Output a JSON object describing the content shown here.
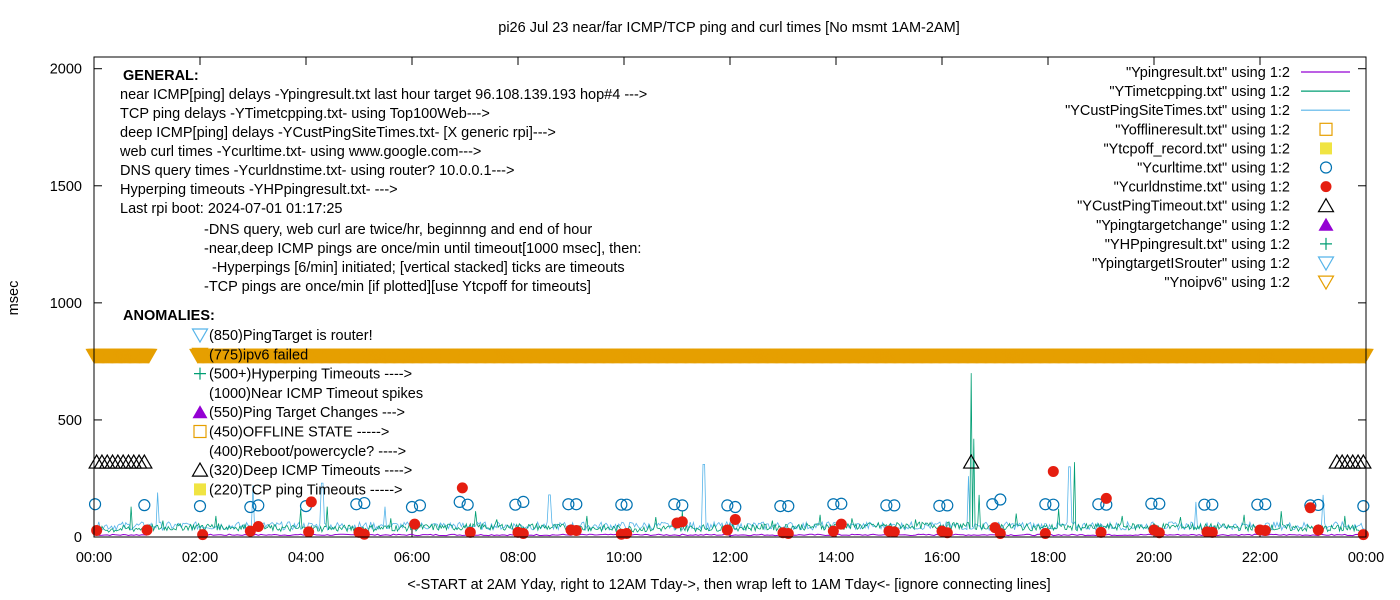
{
  "chart_data": {
    "type": "scatter",
    "title": "pi26 Jul 23  near/far ICMP/TCP ping and curl times [No msmt 1AM-2AM]",
    "xlabel": "<-START at 2AM Yday, right to 12AM Tday->, then wrap left to 1AM Tday<- [ignore connecting lines]",
    "ylabel": "msec",
    "xlim": [
      0,
      24
    ],
    "ylim": [
      0,
      2050
    ],
    "x_ticks": [
      {
        "v": 0,
        "label": "00:00"
      },
      {
        "v": 2,
        "label": "02:00"
      },
      {
        "v": 4,
        "label": "04:00"
      },
      {
        "v": 6,
        "label": "06:00"
      },
      {
        "v": 8,
        "label": "08:00"
      },
      {
        "v": 10,
        "label": "10:00"
      },
      {
        "v": 12,
        "label": "12:00"
      },
      {
        "v": 14,
        "label": "14:00"
      },
      {
        "v": 16,
        "label": "16:00"
      },
      {
        "v": 18,
        "label": "18:00"
      },
      {
        "v": 20,
        "label": "20:00"
      },
      {
        "v": 22,
        "label": "22:00"
      },
      {
        "v": 24,
        "label": "00:00"
      }
    ],
    "y_ticks": [
      {
        "v": 0,
        "label": "0"
      },
      {
        "v": 500,
        "label": "500"
      },
      {
        "v": 1000,
        "label": "1000"
      },
      {
        "v": 1500,
        "label": "1500"
      },
      {
        "v": 2000,
        "label": "2000"
      }
    ],
    "grid": false,
    "legend_position": "top-right",
    "legend": [
      {
        "label": "\"Ypingresult.txt\" using 1:2",
        "kind": "line",
        "color": "#9400d3"
      },
      {
        "label": "\"YTimetcpping.txt\" using 1:2",
        "kind": "line",
        "color": "#009e73"
      },
      {
        "label": "\"YCustPingSiteTimes.txt\" using 1:2",
        "kind": "line",
        "color": "#56b4e9"
      },
      {
        "label": "\"Yofflineresult.txt\" using 1:2",
        "kind": "open-square",
        "color": "#e69f00"
      },
      {
        "label": "\"Ytcpoff_record.txt\" using 1:2",
        "kind": "filled-square",
        "color": "#f0e442"
      },
      {
        "label": "\"Ycurltime.txt\" using 1:2",
        "kind": "open-circle",
        "color": "#0072b2"
      },
      {
        "label": "\"Ycurldnstime.txt\" using 1:2",
        "kind": "filled-circle",
        "color": "#e51e10"
      },
      {
        "label": "\"YCustPingTimeout.txt\" using 1:2",
        "kind": "open-triangle",
        "color": "#000000"
      },
      {
        "label": "\"Ypingtargetchange\" using 1:2",
        "kind": "filled-triangle",
        "color": "#9400d3"
      },
      {
        "label": "\"YHPpingresult.txt\" using 1:2",
        "kind": "plus",
        "color": "#009e73"
      },
      {
        "label": "\"YpingtargetISrouter\" using 1:2",
        "kind": "open-down-triangle",
        "color": "#56b4e9"
      },
      {
        "label": "\"Ynoipv6\" using 1:2",
        "kind": "open-down-triangle",
        "color": "#e69f00"
      }
    ],
    "annotations": {
      "general_header": "GENERAL:",
      "general": [
        "near ICMP[ping] delays -Ypingresult.txt last hour target 96.108.139.193 hop#4 --->",
        "TCP ping delays -YTimetcpping.txt- using Top100Web--->",
        "deep ICMP[ping] delays -YCustPingSiteTimes.txt- [X generic rpi]--->",
        "web curl times -Ycurltime.txt- using www.google.com--->",
        "DNS query times -Ycurldnstime.txt- using router? 10.0.0.1--->",
        "Hyperping timeouts -YHPpingresult.txt- --->",
        "Last rpi boot: 2024-07-01 01:17:25"
      ],
      "notes": [
        "-DNS query, web curl are twice/hr, beginnng and end of hour",
        "-near,deep ICMP pings are once/min until timeout[1000 msec], then:",
        "  -Hyperpings [6/min] initiated; [vertical stacked] ticks are timeouts",
        "-TCP pings are once/min [if plotted][use Ytcpoff for timeouts]"
      ],
      "anomalies_header": "ANOMALIES:",
      "anomalies": [
        {
          "text": "(850)PingTarget is router!",
          "marker": "open-down-triangle",
          "color": "#56b4e9"
        },
        {
          "text": "(775)ipv6 failed",
          "marker": "open-down-triangle",
          "color": "#e69f00"
        },
        {
          "text": "(500+)Hyperping Timeouts ---->",
          "marker": "plus",
          "color": "#009e73"
        },
        {
          "text": "(1000)Near ICMP Timeout spikes",
          "marker": "none",
          "color": "#000000"
        },
        {
          "text": "(550)Ping Target Changes --->",
          "marker": "filled-triangle",
          "color": "#9400d3"
        },
        {
          "text": "(450)OFFLINE STATE ----->",
          "marker": "open-square",
          "color": "#e69f00"
        },
        {
          "text": "(400)Reboot/powercycle? ---->",
          "marker": "none",
          "color": "#000000"
        },
        {
          "text": "(320)Deep ICMP Timeouts ---->",
          "marker": "open-triangle",
          "color": "#000000"
        },
        {
          "text": "(220)TCP ping Timeouts ----->",
          "marker": "filled-square",
          "color": "#f0e442"
        }
      ]
    },
    "series": [
      {
        "name": "\"Ycurltime.txt\" using 1:2",
        "marker": "open-circle",
        "color": "#0072b2",
        "points": [
          [
            0.02,
            140
          ],
          [
            0.95,
            136
          ],
          [
            2.0,
            132
          ],
          [
            2.95,
            128
          ],
          [
            3.1,
            135
          ],
          [
            4.0,
            132
          ],
          [
            4.95,
            140
          ],
          [
            5.1,
            145
          ],
          [
            6.0,
            128
          ],
          [
            6.15,
            135
          ],
          [
            6.9,
            150
          ],
          [
            7.05,
            138
          ],
          [
            7.95,
            138
          ],
          [
            8.1,
            150
          ],
          [
            8.95,
            140
          ],
          [
            9.1,
            140
          ],
          [
            9.95,
            138
          ],
          [
            10.05,
            138
          ],
          [
            10.95,
            140
          ],
          [
            11.1,
            135
          ],
          [
            11.95,
            135
          ],
          [
            12.1,
            128
          ],
          [
            12.95,
            132
          ],
          [
            13.1,
            132
          ],
          [
            13.95,
            140
          ],
          [
            14.1,
            142
          ],
          [
            14.95,
            135
          ],
          [
            15.1,
            135
          ],
          [
            15.95,
            133
          ],
          [
            16.1,
            135
          ],
          [
            16.95,
            140
          ],
          [
            17.1,
            160
          ],
          [
            17.95,
            140
          ],
          [
            18.1,
            138
          ],
          [
            18.95,
            140
          ],
          [
            19.1,
            138
          ],
          [
            19.95,
            142
          ],
          [
            20.1,
            142
          ],
          [
            20.95,
            138
          ],
          [
            21.1,
            138
          ],
          [
            21.95,
            138
          ],
          [
            22.1,
            140
          ],
          [
            22.95,
            135
          ],
          [
            23.1,
            137
          ],
          [
            23.95,
            132
          ]
        ]
      },
      {
        "name": "\"Ycurldnstime.txt\" using 1:2",
        "marker": "filled-circle",
        "color": "#e51e10",
        "points": [
          [
            0.05,
            28
          ],
          [
            1.0,
            30
          ],
          [
            2.05,
            10
          ],
          [
            2.95,
            25
          ],
          [
            3.1,
            45
          ],
          [
            4.05,
            22
          ],
          [
            4.1,
            150
          ],
          [
            5.0,
            20
          ],
          [
            5.1,
            12
          ],
          [
            6.05,
            55
          ],
          [
            6.95,
            210
          ],
          [
            7.1,
            20
          ],
          [
            8.0,
            20
          ],
          [
            8.1,
            15
          ],
          [
            9.0,
            30
          ],
          [
            9.1,
            28
          ],
          [
            9.95,
            12
          ],
          [
            10.05,
            15
          ],
          [
            11.0,
            60
          ],
          [
            11.1,
            65
          ],
          [
            11.95,
            30
          ],
          [
            12.1,
            75
          ],
          [
            13.0,
            18
          ],
          [
            13.1,
            15
          ],
          [
            13.95,
            25
          ],
          [
            14.1,
            55
          ],
          [
            15.0,
            25
          ],
          [
            15.1,
            22
          ],
          [
            16.0,
            25
          ],
          [
            16.1,
            18
          ],
          [
            17.0,
            40
          ],
          [
            17.1,
            15
          ],
          [
            17.95,
            15
          ],
          [
            18.1,
            280
          ],
          [
            19.0,
            20
          ],
          [
            19.1,
            165
          ],
          [
            20.0,
            30
          ],
          [
            20.1,
            18
          ],
          [
            21.0,
            22
          ],
          [
            21.1,
            20
          ],
          [
            22.0,
            30
          ],
          [
            22.1,
            28
          ],
          [
            22.95,
            125
          ],
          [
            23.1,
            30
          ],
          [
            23.95,
            10
          ]
        ]
      },
      {
        "name": "\"YCustPingTimeout.txt\" using 1:2",
        "marker": "open-triangle",
        "color": "#000000",
        "points": [
          [
            0.05,
            320
          ],
          [
            0.15,
            320
          ],
          [
            0.25,
            320
          ],
          [
            0.35,
            320
          ],
          [
            0.45,
            320
          ],
          [
            0.55,
            320
          ],
          [
            0.65,
            320
          ],
          [
            0.75,
            320
          ],
          [
            0.85,
            320
          ],
          [
            0.95,
            320
          ],
          [
            16.55,
            320
          ],
          [
            23.45,
            320
          ],
          [
            23.55,
            320
          ],
          [
            23.65,
            320
          ],
          [
            23.75,
            320
          ],
          [
            23.85,
            320
          ],
          [
            23.95,
            320
          ]
        ]
      },
      {
        "name": "\"Ynoipv6\" using 1:2",
        "marker": "open-down-triangle",
        "color": "#e69f00",
        "x_start": 0,
        "x_end": 24,
        "gap": [
          1.05,
          1.95
        ],
        "y": 775
      }
    ],
    "lines": {
      "tcp_baseline": [
        [
          0,
          15
        ],
        [
          2,
          30
        ],
        [
          4,
          20
        ],
        [
          6,
          25
        ],
        [
          8,
          30
        ],
        [
          10,
          20
        ],
        [
          12,
          25
        ],
        [
          14,
          30
        ],
        [
          16,
          35
        ],
        [
          18,
          25
        ],
        [
          20,
          30
        ],
        [
          22,
          25
        ],
        [
          24,
          20
        ]
      ],
      "tcp_spikes": [
        [
          0.7,
          130
        ],
        [
          1.3,
          70
        ],
        [
          2.3,
          90
        ],
        [
          3.9,
          120
        ],
        [
          4.4,
          130
        ],
        [
          5.6,
          80
        ],
        [
          7.2,
          110
        ],
        [
          7.6,
          75
        ],
        [
          9.3,
          90
        ],
        [
          10.6,
          85
        ],
        [
          11.1,
          110
        ],
        [
          12.8,
          70
        ],
        [
          13.7,
          95
        ],
        [
          14.3,
          80
        ],
        [
          15.5,
          75
        ],
        [
          16.55,
          700
        ],
        [
          16.6,
          420
        ],
        [
          16.7,
          180
        ],
        [
          17.4,
          100
        ],
        [
          18.2,
          120
        ],
        [
          18.5,
          320
        ],
        [
          19.4,
          90
        ],
        [
          20.5,
          85
        ],
        [
          21.7,
          95
        ],
        [
          22.4,
          110
        ],
        [
          23.6,
          90
        ]
      ],
      "deep_icmp_spikes": [
        [
          1.2,
          190
        ],
        [
          3.0,
          220
        ],
        [
          4.3,
          230
        ],
        [
          5.5,
          130
        ],
        [
          8.6,
          180
        ],
        [
          11.5,
          310
        ],
        [
          16.5,
          260
        ],
        [
          18.4,
          300
        ],
        [
          20.8,
          150
        ],
        [
          23.2,
          180
        ]
      ]
    }
  }
}
